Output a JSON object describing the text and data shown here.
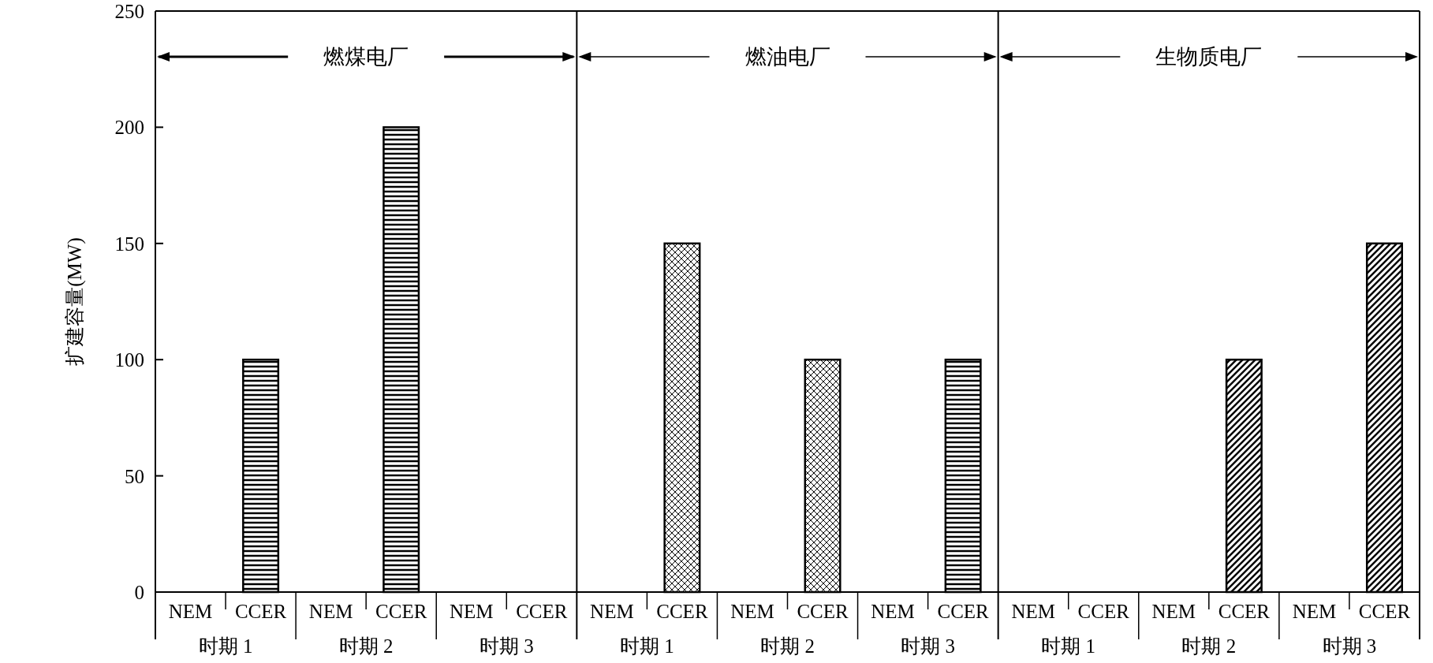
{
  "chart_data": {
    "type": "bar",
    "ylabel": "扩建容量(MW)",
    "categories": [
      "NEM",
      "CCER",
      "NEM",
      "CCER",
      "NEM",
      "CCER",
      "NEM",
      "CCER",
      "NEM",
      "CCER",
      "NEM",
      "CCER",
      "NEM",
      "CCER",
      "NEM",
      "CCER",
      "NEM",
      "CCER"
    ],
    "values": [
      null,
      100,
      null,
      200,
      null,
      null,
      null,
      150,
      null,
      100,
      null,
      100,
      null,
      null,
      null,
      100,
      null,
      150
    ],
    "color": "#000000",
    "ylim": [
      0,
      250
    ],
    "yticks": [
      0,
      50,
      100,
      150,
      200,
      250
    ],
    "annotations": [
      "燃煤电厂",
      "燃油电厂",
      "生物质电厂",
      "时期 1",
      "时期 2",
      "时期 3",
      "时期 1",
      "时期 2",
      "时期 3",
      "时期 1",
      "时期 2",
      "时期 3"
    ]
  }
}
